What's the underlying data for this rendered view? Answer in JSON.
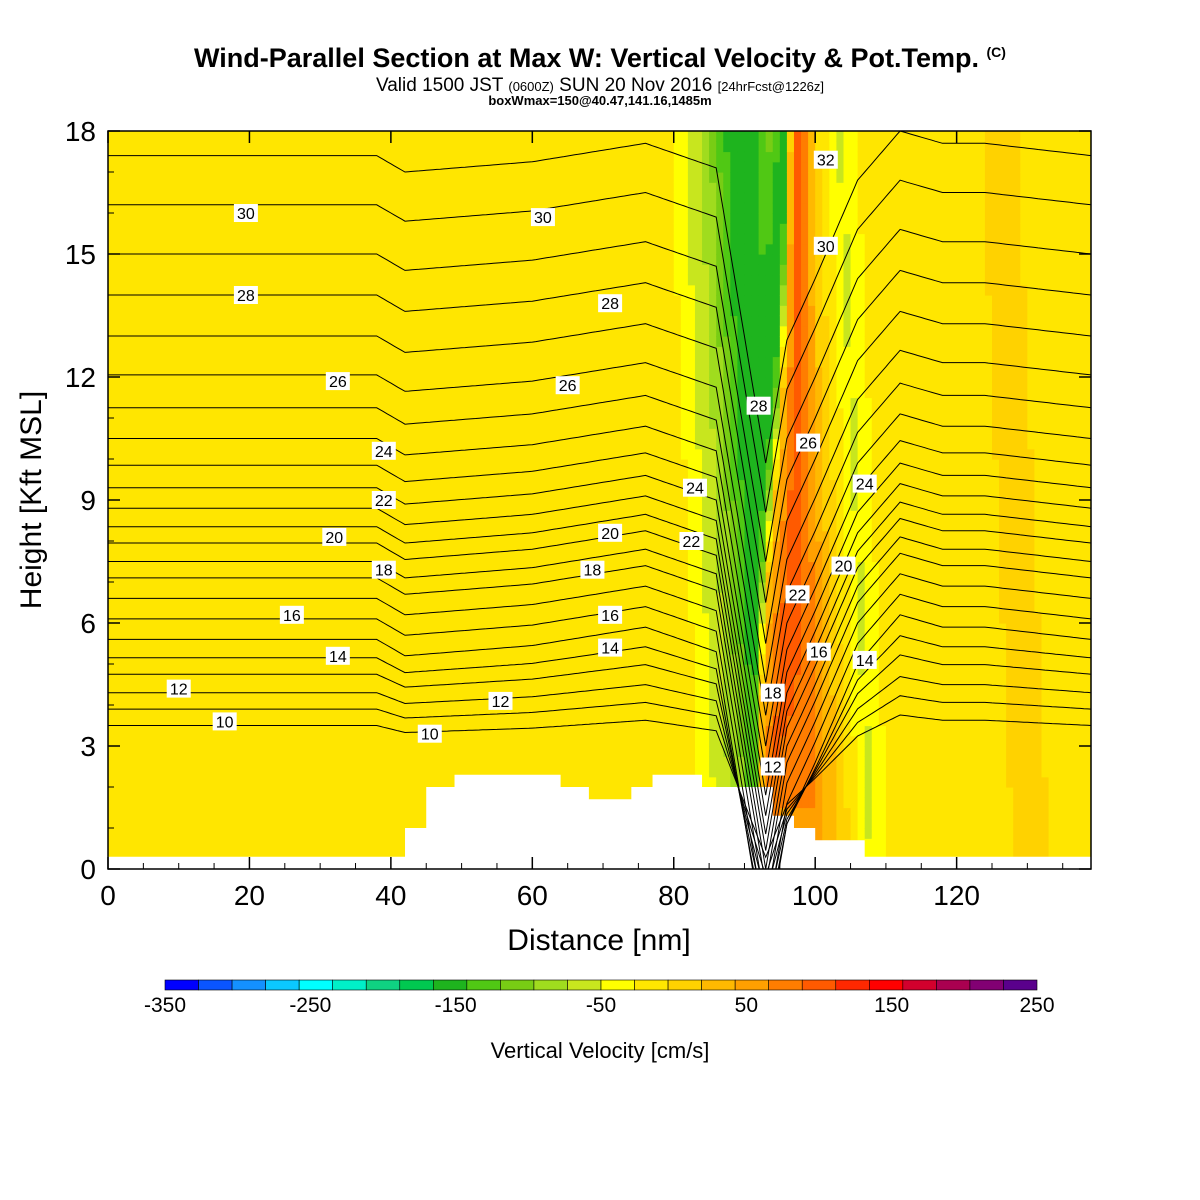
{
  "title": {
    "main": "Wind-Parallel Section at Max W: Vertical Velocity & Pot.Temp.",
    "copyright": "(C)",
    "valid_prefix": "Valid 1500 JST",
    "valid_zulu": "(0600Z)",
    "valid_date": "SUN 20 Nov 2016",
    "forecast": "[24hrFcst@1226z]",
    "box": "boxWmax=150@40.47,141.16,1485m"
  },
  "chart_data": {
    "type": "heatmap",
    "xlabel": "Distance [nm]",
    "ylabel": "Height [Kft MSL]",
    "xlim": [
      0,
      139
    ],
    "ylim": [
      0,
      18
    ],
    "x_ticks": [
      0,
      20,
      40,
      60,
      80,
      100,
      120
    ],
    "y_ticks": [
      0,
      3,
      6,
      9,
      12,
      15,
      18
    ],
    "colorbar": {
      "label": "Vertical Velocity [cm/s]",
      "range": [
        -350,
        250
      ],
      "step": 25,
      "tick_labels": [
        -350,
        -250,
        -150,
        -50,
        50,
        150,
        250
      ],
      "colors": [
        "#0000ff",
        "#0a55ff",
        "#1491ff",
        "#0bc8ff",
        "#00ffff",
        "#00f0c8",
        "#0fd282",
        "#00c850",
        "#1eb41e",
        "#50c814",
        "#78cd14",
        "#a0dc1e",
        "#c8e61e",
        "#ffff00",
        "#ffe600",
        "#ffd200",
        "#ffb900",
        "#ffa000",
        "#ff7d00",
        "#ff5a00",
        "#ff2800",
        "#ff0000",
        "#d2002d",
        "#aa0050",
        "#820073",
        "#5a008c"
      ]
    },
    "terrain": [
      [
        0,
        0.3
      ],
      [
        42,
        0.3
      ],
      [
        42,
        1.0
      ],
      [
        45,
        1.0
      ],
      [
        45,
        2.0
      ],
      [
        49,
        2.0
      ],
      [
        49,
        2.3
      ],
      [
        64,
        2.3
      ],
      [
        64,
        2.0
      ],
      [
        68,
        2.0
      ],
      [
        68,
        1.7
      ],
      [
        74,
        1.7
      ],
      [
        74,
        2.0
      ],
      [
        77,
        2.0
      ],
      [
        77,
        2.3
      ],
      [
        84,
        2.3
      ],
      [
        84,
        2.0
      ],
      [
        94,
        2.0
      ],
      [
        94,
        1.3
      ],
      [
        97,
        1.3
      ],
      [
        97,
        1.0
      ],
      [
        100,
        1.0
      ],
      [
        100,
        0.7
      ],
      [
        107,
        0.7
      ],
      [
        107,
        0.3
      ],
      [
        139,
        0.3
      ]
    ],
    "wprofile": [
      [
        0,
        10
      ],
      [
        30,
        10
      ],
      [
        38,
        25
      ],
      [
        44,
        18
      ],
      [
        60,
        10
      ],
      [
        72,
        15
      ],
      [
        82,
        0
      ],
      [
        87,
        -60
      ],
      [
        91,
        -150
      ],
      [
        92.5,
        -120
      ],
      [
        94,
        60
      ],
      [
        97,
        150
      ],
      [
        99,
        110
      ],
      [
        102,
        40
      ],
      [
        106,
        -30
      ],
      [
        110,
        20
      ],
      [
        120,
        10
      ],
      [
        128,
        30
      ],
      [
        139,
        12
      ]
    ],
    "wshift": [
      [
        0,
        2
      ],
      [
        90,
        2
      ],
      [
        93,
        -4
      ],
      [
        95,
        -4
      ],
      [
        100,
        2
      ],
      [
        139,
        2
      ]
    ],
    "theta_profile": [
      [
        0,
        0
      ],
      [
        38,
        0
      ],
      [
        42,
        -0.4
      ],
      [
        60,
        -0.15
      ],
      [
        76,
        0.3
      ],
      [
        86,
        -0.3
      ],
      [
        93,
        -7.5
      ],
      [
        96,
        -4.5
      ],
      [
        100,
        -3
      ],
      [
        106,
        -0.6
      ],
      [
        112,
        0.6
      ],
      [
        118,
        0.3
      ],
      [
        124,
        0.3
      ],
      [
        139,
        0
      ]
    ],
    "isentropes": {
      "levels": [
        10,
        11,
        12,
        13,
        14,
        15,
        16,
        17,
        18,
        19,
        20,
        21,
        22,
        23,
        24,
        25,
        26,
        27,
        28,
        29,
        30,
        31,
        32
      ],
      "base_heights": [
        3.5,
        3.9,
        4.3,
        4.75,
        5.15,
        5.6,
        6.1,
        6.6,
        7.1,
        7.5,
        7.95,
        8.35,
        8.8,
        9.3,
        9.85,
        10.5,
        11.25,
        12.05,
        13.0,
        14.0,
        15.0,
        16.2,
        17.4
      ]
    },
    "contour_labels": [
      {
        "text": "30",
        "x": 19.5,
        "y": 16.0
      },
      {
        "text": "30",
        "x": 61.5,
        "y": 15.9
      },
      {
        "text": "32",
        "x": 101.5,
        "y": 17.3
      },
      {
        "text": "30",
        "x": 101.5,
        "y": 15.2
      },
      {
        "text": "28",
        "x": 19.5,
        "y": 14.0
      },
      {
        "text": "28",
        "x": 71.0,
        "y": 13.8
      },
      {
        "text": "26",
        "x": 32.5,
        "y": 11.9
      },
      {
        "text": "26",
        "x": 65.0,
        "y": 11.8
      },
      {
        "text": "28",
        "x": 92.0,
        "y": 11.3
      },
      {
        "text": "26",
        "x": 99.0,
        "y": 10.4
      },
      {
        "text": "24",
        "x": 39.0,
        "y": 10.2
      },
      {
        "text": "24",
        "x": 83.0,
        "y": 9.3
      },
      {
        "text": "24",
        "x": 107.0,
        "y": 9.4
      },
      {
        "text": "22",
        "x": 39.0,
        "y": 9.0
      },
      {
        "text": "22",
        "x": 82.5,
        "y": 8.0
      },
      {
        "text": "20",
        "x": 32.0,
        "y": 8.1
      },
      {
        "text": "20",
        "x": 71.0,
        "y": 8.2
      },
      {
        "text": "20",
        "x": 104.0,
        "y": 7.4
      },
      {
        "text": "18",
        "x": 39.0,
        "y": 7.3
      },
      {
        "text": "18",
        "x": 68.5,
        "y": 7.3
      },
      {
        "text": "22",
        "x": 97.5,
        "y": 6.7
      },
      {
        "text": "16",
        "x": 26.0,
        "y": 6.2
      },
      {
        "text": "16",
        "x": 71.0,
        "y": 6.2
      },
      {
        "text": "14",
        "x": 32.5,
        "y": 5.2
      },
      {
        "text": "14",
        "x": 71.0,
        "y": 5.4
      },
      {
        "text": "16",
        "x": 100.5,
        "y": 5.3
      },
      {
        "text": "14",
        "x": 107.0,
        "y": 5.1
      },
      {
        "text": "12",
        "x": 10.0,
        "y": 4.4
      },
      {
        "text": "12",
        "x": 55.5,
        "y": 4.1
      },
      {
        "text": "18",
        "x": 94.0,
        "y": 4.3
      },
      {
        "text": "10",
        "x": 16.5,
        "y": 3.6
      },
      {
        "text": "10",
        "x": 45.5,
        "y": 3.3
      },
      {
        "text": "12",
        "x": 94.0,
        "y": 2.5
      }
    ]
  }
}
